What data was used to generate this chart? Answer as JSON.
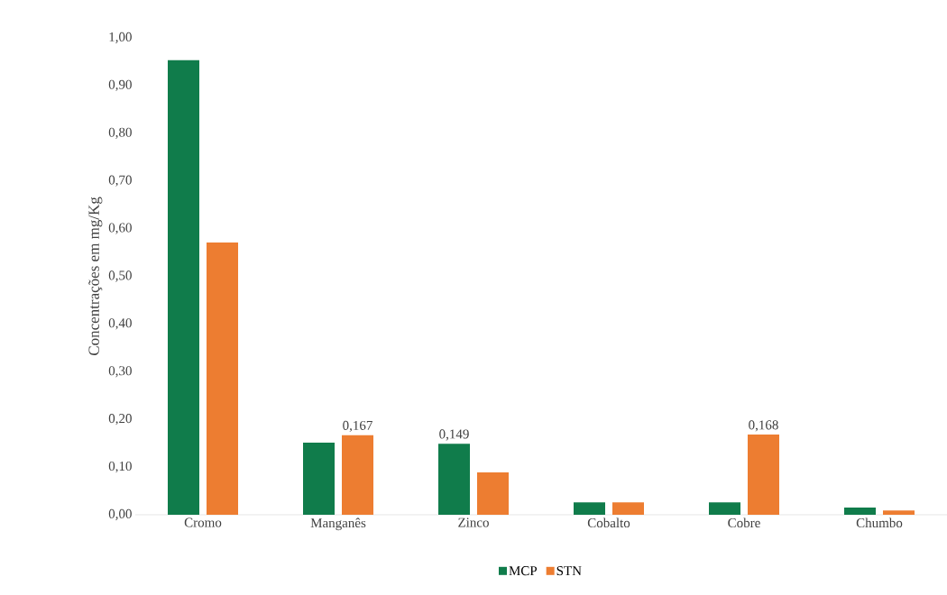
{
  "chart_data": {
    "type": "bar",
    "ylabel": "Concentrações em mg/Kg",
    "categories": [
      "Cromo",
      "Manganês",
      "Zinco",
      "Cobalto",
      "Cobre",
      "Chumbo"
    ],
    "series": [
      {
        "name": "MCP",
        "color": "#107c4b",
        "values": [
          0.953,
          0.151,
          0.149,
          0.026,
          0.026,
          0.015
        ],
        "value_labels": [
          null,
          null,
          "0,149",
          null,
          null,
          null
        ]
      },
      {
        "name": "STN",
        "color": "#ed7d31",
        "values": [
          0.571,
          0.167,
          0.089,
          0.026,
          0.168,
          0.009
        ],
        "value_labels": [
          null,
          "0,167",
          null,
          null,
          "0,168",
          null
        ]
      }
    ],
    "ylim": [
      0,
      1
    ],
    "yticks": [
      {
        "value": 0,
        "label": "0,00"
      },
      {
        "value": 0.1,
        "label": "0,10"
      },
      {
        "value": 0.2,
        "label": "0,20"
      },
      {
        "value": 0.3,
        "label": "0,30"
      },
      {
        "value": 0.4,
        "label": "0,40"
      },
      {
        "value": 0.5,
        "label": "0,50"
      },
      {
        "value": 0.6,
        "label": "0,60"
      },
      {
        "value": 0.7,
        "label": "0,70"
      },
      {
        "value": 0.8,
        "label": "0,80"
      },
      {
        "value": 0.9,
        "label": "0,90"
      },
      {
        "value": 1,
        "label": "1,00"
      }
    ],
    "grid": false,
    "legend": "bottom"
  }
}
